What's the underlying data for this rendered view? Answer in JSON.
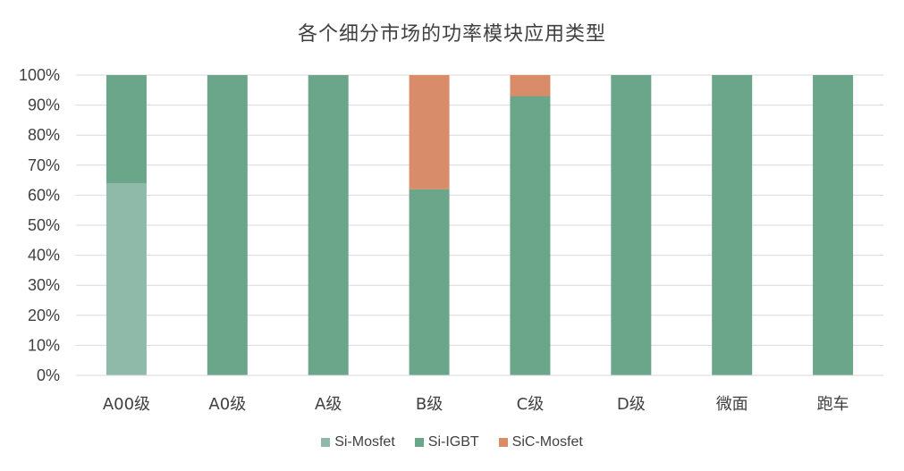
{
  "chart_data": {
    "type": "bar",
    "stacked": true,
    "title": "各个细分市场的功率模块应用类型",
    "categories": [
      "A00级",
      "A0级",
      "A级",
      "B级",
      "C级",
      "D级",
      "微面",
      "跑车"
    ],
    "series": [
      {
        "name": "Si-Mosfet",
        "color": "#8fb9a8",
        "values": [
          64,
          0,
          0,
          0,
          0,
          0,
          0,
          0
        ]
      },
      {
        "name": "Si-IGBT",
        "color": "#6ba58a",
        "values": [
          36,
          100,
          100,
          62,
          93,
          100,
          100,
          100
        ]
      },
      {
        "name": "SiC-Mosfet",
        "color": "#d98c6a",
        "values": [
          0,
          0,
          0,
          38,
          7,
          0,
          0,
          0
        ]
      }
    ],
    "ylim": [
      0,
      100
    ],
    "yticks": [
      "0%",
      "10%",
      "20%",
      "30%",
      "40%",
      "50%",
      "60%",
      "70%",
      "80%",
      "90%",
      "100%"
    ],
    "grid": true,
    "legend_position": "bottom"
  }
}
